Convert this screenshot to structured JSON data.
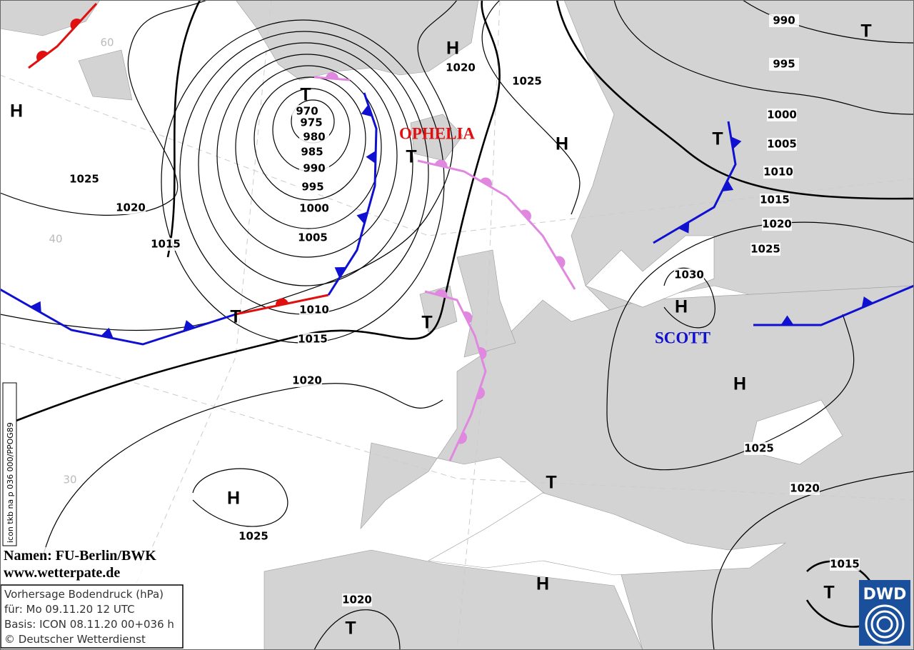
{
  "isobar_labels": [
    990,
    995,
    1000,
    1005,
    1010,
    1015,
    1020,
    1025,
    1030,
    1025,
    1020,
    1015,
    1020,
    1025,
    970,
    975,
    980,
    985,
    990,
    995,
    1000,
    1005,
    1010,
    1015,
    1020,
    1025,
    1020,
    1015,
    1025,
    1020
  ],
  "pressure_centers": [
    "H",
    "T",
    "H",
    "H",
    "T",
    "T",
    "T",
    "T",
    "T",
    "H",
    "H",
    "T",
    "H",
    "H",
    "T",
    "T"
  ],
  "system_names": [
    "OPHELIA",
    "SCOTT"
  ],
  "grid_labels": [
    "60",
    "40",
    "30"
  ],
  "credits": [
    "Namen: FU-Berlin/BWK",
    "www.wetterpate.de"
  ],
  "info_box": [
    "Vorhersage Bodendruck (hPa)",
    "für:  Mo 09.11.20  12 UTC",
    "Basis: ICON  08.11.20 00+036 h",
    "© Deutscher Wetterdienst"
  ],
  "product_code": "icon tkb na p 036 000/PPOG89",
  "logo": "DWD"
}
